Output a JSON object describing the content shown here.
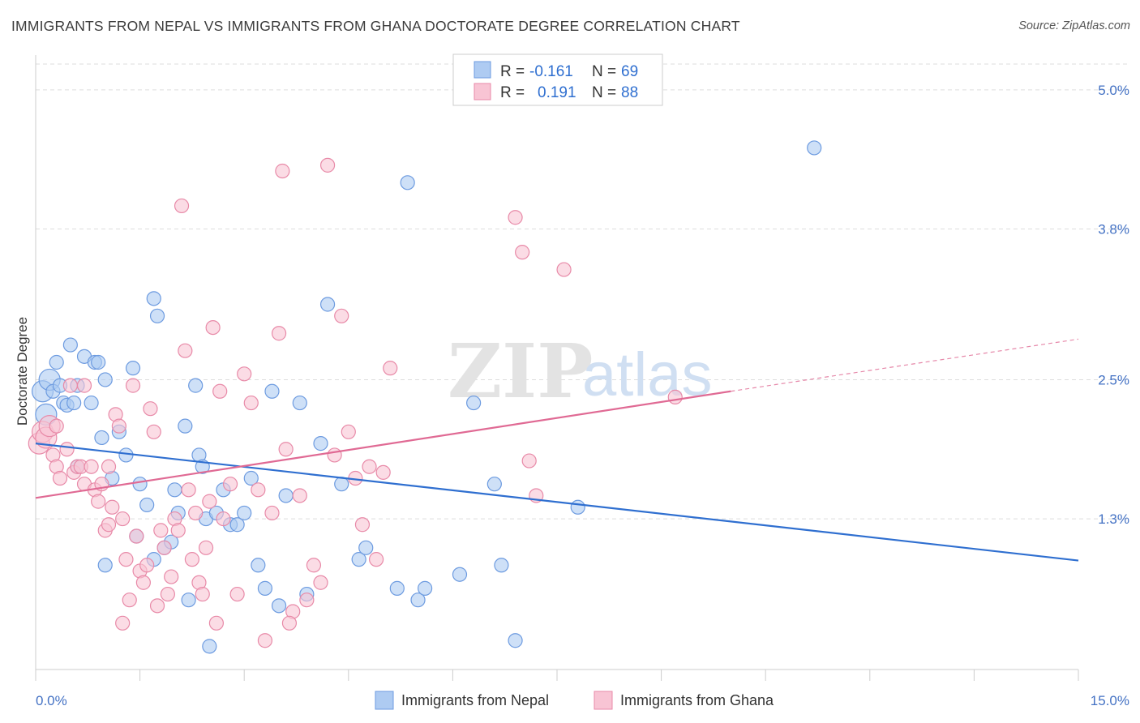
{
  "header": {
    "title": "IMMIGRANTS FROM NEPAL VS IMMIGRANTS FROM GHANA DOCTORATE DEGREE CORRELATION CHART",
    "source": "Source: ZipAtlas.com"
  },
  "watermark": {
    "zip": "ZIP",
    "atlas": "atlas"
  },
  "colors": {
    "nepal_fill": "#aecbf2",
    "nepal_stroke": "#6d9be0",
    "nepal_line": "#2f6fd0",
    "ghana_fill": "#f8c4d4",
    "ghana_stroke": "#e88aa8",
    "ghana_line": "#e06a94",
    "grid": "#dddddd",
    "tick_label": "#4472c4"
  },
  "legend": {
    "rows": [
      {
        "r_label": "R =",
        "r_value": "-0.161",
        "n_label": "N =",
        "n_value": "69"
      },
      {
        "r_label": "R =",
        "r_value": "0.191",
        "n_label": "N =",
        "n_value": "88"
      }
    ]
  },
  "chart_data": {
    "type": "scatter",
    "title": "IMMIGRANTS FROM NEPAL VS IMMIGRANTS FROM GHANA DOCTORATE DEGREE CORRELATION CHART",
    "xlabel": "",
    "ylabel": "Doctorate Degree",
    "xlim": [
      0,
      15
    ],
    "ylim": [
      0,
      5.3
    ],
    "x_tick_labels": [
      "0.0%",
      "15.0%"
    ],
    "y_ticks": [
      {
        "value": 1.3,
        "label": "1.3%"
      },
      {
        "value": 2.5,
        "label": "2.5%"
      },
      {
        "value": 3.8,
        "label": "3.8%"
      },
      {
        "value": 5.0,
        "label": "5.0%"
      }
    ],
    "series": [
      {
        "name": "Immigrants from Nepal",
        "r": -0.161,
        "n": 69,
        "trend": {
          "x0": 0,
          "y0": 1.95,
          "x1": 15,
          "y1": 0.94
        },
        "points": [
          [
            0.1,
            2.4
          ],
          [
            0.15,
            2.2
          ],
          [
            0.2,
            2.5
          ],
          [
            0.25,
            2.4
          ],
          [
            0.3,
            2.65
          ],
          [
            0.35,
            2.45
          ],
          [
            0.4,
            2.3
          ],
          [
            0.45,
            2.28
          ],
          [
            0.5,
            2.8
          ],
          [
            0.55,
            2.3
          ],
          [
            0.6,
            2.45
          ],
          [
            0.7,
            2.7
          ],
          [
            0.8,
            2.3
          ],
          [
            0.85,
            2.65
          ],
          [
            0.9,
            2.65
          ],
          [
            0.95,
            2.0
          ],
          [
            1.0,
            2.5
          ],
          [
            1.1,
            1.65
          ],
          [
            1.2,
            2.05
          ],
          [
            1.3,
            1.85
          ],
          [
            1.4,
            2.6
          ],
          [
            1.5,
            1.6
          ],
          [
            1.6,
            1.42
          ],
          [
            1.7,
            3.2
          ],
          [
            1.75,
            3.05
          ],
          [
            1.85,
            1.05
          ],
          [
            1.95,
            1.1
          ],
          [
            2.0,
            1.55
          ],
          [
            2.05,
            1.35
          ],
          [
            2.15,
            2.1
          ],
          [
            2.2,
            0.6
          ],
          [
            2.3,
            2.45
          ],
          [
            2.35,
            1.85
          ],
          [
            2.4,
            1.75
          ],
          [
            2.45,
            1.3
          ],
          [
            2.5,
            0.2
          ],
          [
            2.6,
            1.35
          ],
          [
            2.7,
            1.55
          ],
          [
            2.8,
            1.25
          ],
          [
            2.9,
            1.25
          ],
          [
            3.0,
            1.35
          ],
          [
            3.1,
            1.65
          ],
          [
            3.2,
            0.9
          ],
          [
            3.3,
            0.7
          ],
          [
            3.4,
            2.4
          ],
          [
            3.5,
            0.55
          ],
          [
            3.6,
            1.5
          ],
          [
            3.8,
            2.3
          ],
          [
            3.9,
            0.65
          ],
          [
            4.1,
            1.95
          ],
          [
            4.2,
            3.15
          ],
          [
            4.4,
            1.6
          ],
          [
            4.65,
            0.95
          ],
          [
            4.75,
            1.05
          ],
          [
            5.2,
            0.7
          ],
          [
            5.35,
            4.2
          ],
          [
            5.5,
            0.6
          ],
          [
            5.6,
            0.7
          ],
          [
            6.1,
            0.82
          ],
          [
            6.3,
            2.3
          ],
          [
            6.6,
            1.6
          ],
          [
            6.7,
            0.9
          ],
          [
            6.9,
            0.25
          ],
          [
            7.8,
            1.4
          ],
          [
            11.2,
            4.5
          ],
          [
            1.7,
            0.95
          ],
          [
            0.6,
            1.75
          ],
          [
            1.0,
            0.9
          ],
          [
            1.45,
            1.15
          ]
        ]
      },
      {
        "name": "Immigrants from Ghana",
        "r": 0.191,
        "n": 88,
        "trend": {
          "x0": 0,
          "y0": 1.48,
          "x1": 10.0,
          "y1": 2.4,
          "dash_x1": 15,
          "dash_y1": 2.85
        },
        "points": [
          [
            0.05,
            1.95
          ],
          [
            0.1,
            2.05
          ],
          [
            0.15,
            2.0
          ],
          [
            0.2,
            2.1
          ],
          [
            0.25,
            1.85
          ],
          [
            0.3,
            1.75
          ],
          [
            0.35,
            1.65
          ],
          [
            0.45,
            1.9
          ],
          [
            0.5,
            2.45
          ],
          [
            0.55,
            1.7
          ],
          [
            0.6,
            1.75
          ],
          [
            0.65,
            1.75
          ],
          [
            0.7,
            1.6
          ],
          [
            0.8,
            1.75
          ],
          [
            0.85,
            1.55
          ],
          [
            0.9,
            1.45
          ],
          [
            0.95,
            1.6
          ],
          [
            1.0,
            1.2
          ],
          [
            1.05,
            1.25
          ],
          [
            1.1,
            1.4
          ],
          [
            1.15,
            2.2
          ],
          [
            1.2,
            2.1
          ],
          [
            1.25,
            1.3
          ],
          [
            1.3,
            0.95
          ],
          [
            1.35,
            0.6
          ],
          [
            1.4,
            2.45
          ],
          [
            1.45,
            1.15
          ],
          [
            1.5,
            0.85
          ],
          [
            1.55,
            0.75
          ],
          [
            1.6,
            0.9
          ],
          [
            1.65,
            2.25
          ],
          [
            1.7,
            2.05
          ],
          [
            1.75,
            0.55
          ],
          [
            1.8,
            1.2
          ],
          [
            1.85,
            1.05
          ],
          [
            1.9,
            0.65
          ],
          [
            1.95,
            0.8
          ],
          [
            2.0,
            1.3
          ],
          [
            2.05,
            1.2
          ],
          [
            2.1,
            4.0
          ],
          [
            2.15,
            2.75
          ],
          [
            2.2,
            1.55
          ],
          [
            2.25,
            0.95
          ],
          [
            2.3,
            1.35
          ],
          [
            2.35,
            0.75
          ],
          [
            2.4,
            0.65
          ],
          [
            2.45,
            1.05
          ],
          [
            2.5,
            1.45
          ],
          [
            2.55,
            2.95
          ],
          [
            2.6,
            0.4
          ],
          [
            2.65,
            2.4
          ],
          [
            2.7,
            1.3
          ],
          [
            2.8,
            1.6
          ],
          [
            2.9,
            0.65
          ],
          [
            3.0,
            2.55
          ],
          [
            3.1,
            2.3
          ],
          [
            3.2,
            1.55
          ],
          [
            3.3,
            0.25
          ],
          [
            3.4,
            1.35
          ],
          [
            3.5,
            2.9
          ],
          [
            3.55,
            4.3
          ],
          [
            3.6,
            1.9
          ],
          [
            3.7,
            0.5
          ],
          [
            3.8,
            1.5
          ],
          [
            3.9,
            0.6
          ],
          [
            4.0,
            0.9
          ],
          [
            4.1,
            0.75
          ],
          [
            4.2,
            4.35
          ],
          [
            4.3,
            1.85
          ],
          [
            4.4,
            3.05
          ],
          [
            4.5,
            2.05
          ],
          [
            4.6,
            1.65
          ],
          [
            4.7,
            1.25
          ],
          [
            4.8,
            1.75
          ],
          [
            4.9,
            0.95
          ],
          [
            5.0,
            1.7
          ],
          [
            5.1,
            2.6
          ],
          [
            6.9,
            3.9
          ],
          [
            7.0,
            3.6
          ],
          [
            7.1,
            1.8
          ],
          [
            7.2,
            1.5
          ],
          [
            7.6,
            3.45
          ],
          [
            9.2,
            2.35
          ],
          [
            0.7,
            2.45
          ],
          [
            1.25,
            0.4
          ],
          [
            3.65,
            0.4
          ],
          [
            1.05,
            1.75
          ],
          [
            0.3,
            2.1
          ]
        ]
      }
    ]
  },
  "bottom_legend": {
    "items": [
      "Immigrants from Nepal",
      "Immigrants from Ghana"
    ]
  }
}
